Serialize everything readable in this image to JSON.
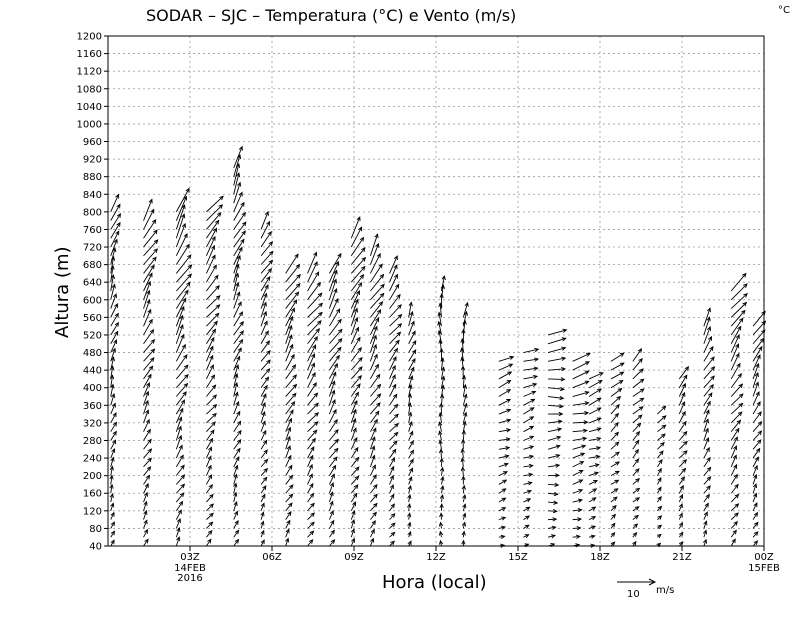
{
  "chart_data": {
    "type": "vector-wind-profile",
    "title": "SODAR – SJC – Temperatura (°C) e Vento (m/s)",
    "corner_unit": "°C",
    "xlabel": "Hora (local)",
    "ylabel": "Altura (m)",
    "ylim": [
      40,
      1200
    ],
    "y_ticks": [
      40,
      80,
      120,
      160,
      200,
      240,
      280,
      320,
      360,
      400,
      440,
      480,
      520,
      560,
      600,
      640,
      680,
      720,
      760,
      800,
      840,
      880,
      920,
      960,
      1000,
      1040,
      1080,
      1120,
      1160,
      1200
    ],
    "xlim_hours": [
      0,
      24
    ],
    "x_ticks": [
      {
        "hour": 3,
        "label": "03Z",
        "sub1": "14FEB",
        "sub2": "2016"
      },
      {
        "hour": 6,
        "label": "06Z",
        "sub1": "",
        "sub2": ""
      },
      {
        "hour": 9,
        "label": "09Z",
        "sub1": "",
        "sub2": ""
      },
      {
        "hour": 12,
        "label": "12Z",
        "sub1": "",
        "sub2": ""
      },
      {
        "hour": 15,
        "label": "15Z",
        "sub1": "",
        "sub2": ""
      },
      {
        "hour": 18,
        "label": "18Z",
        "sub1": "",
        "sub2": ""
      },
      {
        "hour": 21,
        "label": "21Z",
        "sub1": "",
        "sub2": ""
      },
      {
        "hour": 24,
        "label": "00Z",
        "sub1": "15FEB",
        "sub2": ""
      }
    ],
    "reference_vector": {
      "value": "10",
      "unit": "m/s"
    },
    "height_step_m": 20,
    "wind_profiles": [
      {
        "hour": 0.1,
        "top": 800,
        "speed": 5,
        "dir": 200
      },
      {
        "hour": 1.3,
        "top": 780,
        "speed": 6,
        "dir": 210
      },
      {
        "hour": 2.5,
        "top": 800,
        "speed": 7,
        "dir": 210
      },
      {
        "hour": 3.6,
        "top": 800,
        "speed": 6,
        "dir": 215
      },
      {
        "hour": 4.6,
        "top": 900,
        "speed": 6,
        "dir": 205
      },
      {
        "hour": 5.6,
        "top": 760,
        "speed": 5,
        "dir": 210
      },
      {
        "hour": 6.5,
        "top": 660,
        "speed": 6,
        "dir": 210
      },
      {
        "hour": 7.3,
        "top": 660,
        "speed": 6,
        "dir": 215
      },
      {
        "hour": 8.1,
        "top": 660,
        "speed": 6,
        "dir": 210
      },
      {
        "hour": 8.9,
        "top": 740,
        "speed": 6,
        "dir": 210
      },
      {
        "hour": 9.6,
        "top": 700,
        "speed": 6,
        "dir": 210
      },
      {
        "hour": 10.3,
        "top": 660,
        "speed": 5,
        "dir": 215
      },
      {
        "hour": 11.0,
        "top": 560,
        "speed": 4,
        "dir": 200
      },
      {
        "hour": 12.2,
        "top": 620,
        "speed": 4,
        "dir": 180
      },
      {
        "hour": 13.0,
        "top": 560,
        "speed": 4,
        "dir": 185
      },
      {
        "hour": 14.3,
        "top": 460,
        "speed": 4,
        "dir": 250
      },
      {
        "hour": 15.2,
        "top": 480,
        "speed": 4,
        "dir": 250
      },
      {
        "hour": 16.1,
        "top": 520,
        "speed": 5,
        "dir": 265
      },
      {
        "hour": 17.0,
        "top": 460,
        "speed": 5,
        "dir": 255
      },
      {
        "hour": 17.6,
        "top": 420,
        "speed": 4,
        "dir": 250
      },
      {
        "hour": 18.4,
        "top": 460,
        "speed": 4,
        "dir": 230
      },
      {
        "hour": 19.2,
        "top": 460,
        "speed": 4,
        "dir": 225
      },
      {
        "hour": 20.1,
        "top": 340,
        "speed": 3,
        "dir": 220
      },
      {
        "hour": 20.9,
        "top": 420,
        "speed": 4,
        "dir": 215
      },
      {
        "hour": 21.8,
        "top": 540,
        "speed": 5,
        "dir": 210
      },
      {
        "hour": 22.8,
        "top": 620,
        "speed": 6,
        "dir": 215
      },
      {
        "hour": 23.6,
        "top": 540,
        "speed": 5,
        "dir": 210
      }
    ]
  }
}
